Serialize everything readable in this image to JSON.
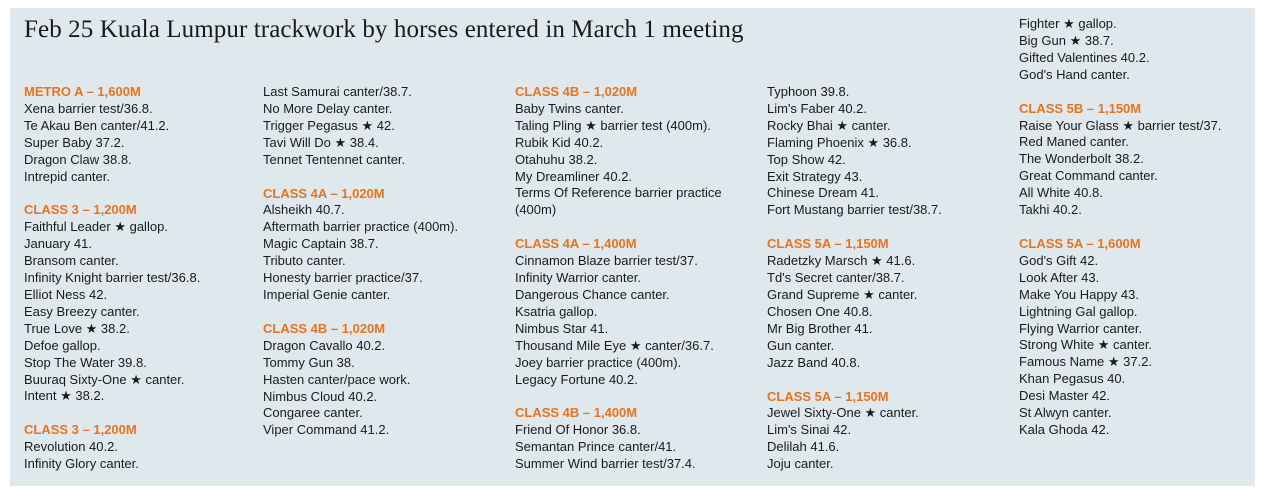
{
  "title": "Feb 25 Kuala Lumpur trackwork by horses entered in March 1 meeting",
  "columns": [
    {
      "sections": [
        {
          "heading": "METRO A – 1,600M",
          "entries": [
            "Xena barrier test/36.8.",
            "Te Akau Ben canter/41.2.",
            "Super Baby 37.2.",
            "Dragon Claw 38.8.",
            "Intrepid canter."
          ]
        },
        {
          "heading": "CLASS 3 – 1,200M",
          "entries": [
            "Faithful Leader ★ gallop.",
            "January 41.",
            "Bransom canter.",
            "Infinity Knight barrier test/36.8.",
            "Elliot Ness 42.",
            "Easy Breezy canter.",
            "True Love ★ 38.2.",
            "Defoe gallop.",
            "Stop The Water 39.8.",
            "Buuraq Sixty-One ★ canter.",
            "Intent ★ 38.2."
          ]
        },
        {
          "heading": "CLASS 3 – 1,200M",
          "entries": [
            "Revolution 40.2.",
            "Infinity Glory canter."
          ]
        }
      ]
    },
    {
      "sections": [
        {
          "heading": "",
          "entries": [
            "Last Samurai canter/38.7.",
            "No More Delay canter.",
            "Trigger Pegasus ★ 42.",
            "Tavi Will Do ★ 38.4.",
            "Tennet Tentennet canter."
          ]
        },
        {
          "heading": "CLASS 4A – 1,020M",
          "entries": [
            "Alsheikh 40.7.",
            "Aftermath barrier practice (400m).",
            "Magic Captain 38.7.",
            "Tributo canter.",
            "Honesty barrier practice/37.",
            "Imperial Genie canter."
          ]
        },
        {
          "heading": "CLASS 4B – 1,020M",
          "entries": [
            "Dragon Cavallo 40.2.",
            "Tommy Gun 38.",
            "Hasten canter/pace work.",
            "Nimbus Cloud 40.2.",
            "Congaree canter.",
            "Viper Command 41.2."
          ]
        }
      ]
    },
    {
      "sections": [
        {
          "heading": "CLASS 4B – 1,020M",
          "entries": [
            "Baby Twins canter.",
            "Taling Pling ★ barrier test (400m).",
            "Rubik Kid 40.2.",
            "Otahuhu 38.2.",
            "My Dreamliner 40.2.",
            "Terms Of Reference barrier practice (400m)"
          ]
        },
        {
          "heading": "CLASS 4A – 1,400M",
          "entries": [
            "Cinnamon Blaze barrier test/37.",
            "Infinity Warrior canter.",
            "Dangerous Chance canter.",
            "Ksatria gallop.",
            "Nimbus Star 41.",
            "Thousand Mile Eye ★ canter/36.7.",
            "Joey barrier practice (400m).",
            "Legacy Fortune 40.2."
          ]
        },
        {
          "heading": "CLASS 4B – 1,400M",
          "entries": [
            "Friend Of Honor 36.8.",
            "Semantan Prince canter/41.",
            "Summer Wind barrier test/37.4."
          ]
        }
      ]
    },
    {
      "sections": [
        {
          "heading": "",
          "entries": [
            "Typhoon 39.8.",
            "Lim's Faber 40.2.",
            "Rocky Bhai ★ canter.",
            "Flaming Phoenix ★ 36.8.",
            "Top Show 42.",
            "Exit Strategy 43.",
            "Chinese Dream 41.",
            "Fort Mustang barrier test/38.7."
          ]
        },
        {
          "heading": "CLASS 5A – 1,150M",
          "entries": [
            "Radetzky Marsch ★ 41.6.",
            "Td's Secret canter/38.7.",
            "Grand Supreme ★ canter.",
            "Chosen One 40.8.",
            "Mr Big Brother 41.",
            "Gun canter.",
            "Jazz Band 40.8."
          ]
        },
        {
          "heading": "CLASS 5A – 1,150M",
          "entries": [
            "Jewel Sixty-One ★ canter.",
            "Lim's Sinai 42.",
            "Delilah 41.6.",
            "Joju canter."
          ]
        }
      ]
    },
    {
      "sections": [
        {
          "heading": "",
          "entries": [
            "Fighter ★ gallop.",
            "Big Gun ★ 38.7.",
            "Gifted Valentines 40.2.",
            "God's Hand canter."
          ]
        },
        {
          "heading": "CLASS 5B – 1,150M",
          "entries": [
            "Raise Your Glass ★ barrier test/37.",
            "Red Maned canter.",
            "The Wonderbolt 38.2.",
            "Great Command canter.",
            "All White 40.8.",
            "Takhi 40.2."
          ]
        },
        {
          "heading": "CLASS 5A – 1,600M",
          "entries": [
            "God's Gift 42.",
            "Look After 43.",
            "Make You Happy 43.",
            "Lightning Gal gallop.",
            "Flying Warrior canter.",
            "Strong White ★ canter.",
            "Famous Name ★ 37.2.",
            "Khan Pegasus 40.",
            "Desi Master 42.",
            "St Alwyn canter.",
            "Kala Ghoda 42."
          ]
        }
      ]
    }
  ]
}
